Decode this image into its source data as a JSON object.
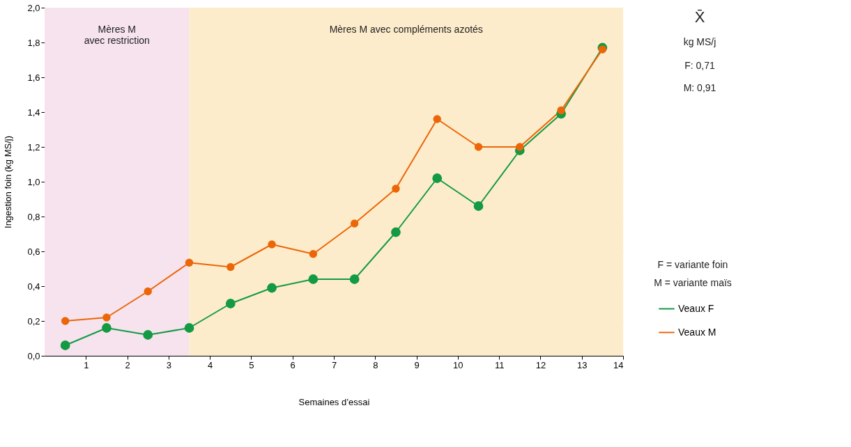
{
  "chart_data": {
    "type": "line",
    "xlabel": "Semaines d’essai",
    "ylabel": "Ingestion foin (kg MS/j)",
    "x": [
      0.5,
      1.5,
      2.5,
      3.5,
      4.5,
      5.5,
      6.5,
      7.5,
      8.5,
      9.5,
      10.5,
      11.5,
      12.5,
      13.5
    ],
    "series": [
      {
        "name": "Veaux F",
        "color": "#139a43",
        "values": [
          0.06,
          0.16,
          0.12,
          0.16,
          0.3,
          0.39,
          0.44,
          0.44,
          0.71,
          1.02,
          0.86,
          1.18,
          1.39,
          1.77
        ]
      },
      {
        "name": "Veaux M",
        "color": "#ec6608",
        "values": [
          0.2,
          0.22,
          0.37,
          0.535,
          0.51,
          0.64,
          0.585,
          0.76,
          0.96,
          1.36,
          1.2,
          1.2,
          1.41,
          1.76
        ]
      }
    ],
    "xlim": [
      0,
      14
    ],
    "xticks": [
      1,
      2,
      3,
      4,
      5,
      6,
      7,
      8,
      9,
      10,
      11,
      12,
      13,
      14
    ],
    "ylim": [
      0,
      2
    ],
    "yticks": [
      {
        "value": 0,
        "label": "0,0"
      },
      {
        "value": 0.2,
        "label": "0,2"
      },
      {
        "value": 0.4,
        "label": "0,4"
      },
      {
        "value": 0.6,
        "label": "0,6"
      },
      {
        "value": 0.8,
        "label": "0,8"
      },
      {
        "value": 1.0,
        "label": "1,0"
      },
      {
        "value": 1.2,
        "label": "1,2"
      },
      {
        "value": 1.4,
        "label": "1,4"
      },
      {
        "value": 1.6,
        "label": "1,6"
      },
      {
        "value": 1.8,
        "label": "1,8"
      },
      {
        "value": 2.0,
        "label": "2,0"
      }
    ],
    "bands": [
      {
        "axis": "x",
        "from": 0,
        "to": 3.5,
        "label": "Mères M\navec restriction",
        "color": "#f6e3ee"
      },
      {
        "axis": "x",
        "from": 3.5,
        "to": 14,
        "label": "Mères M avec compléments azotés",
        "color": "#fdeccb"
      }
    ],
    "annotations": [
      "X̄",
      "kg MS/j",
      "F: 0,71",
      "M: 0,91",
      "F  = variante foin",
      "M = variante maïs"
    ],
    "grid": "y",
    "legend": "right",
    "marker": "circle",
    "line_style": "solid"
  }
}
